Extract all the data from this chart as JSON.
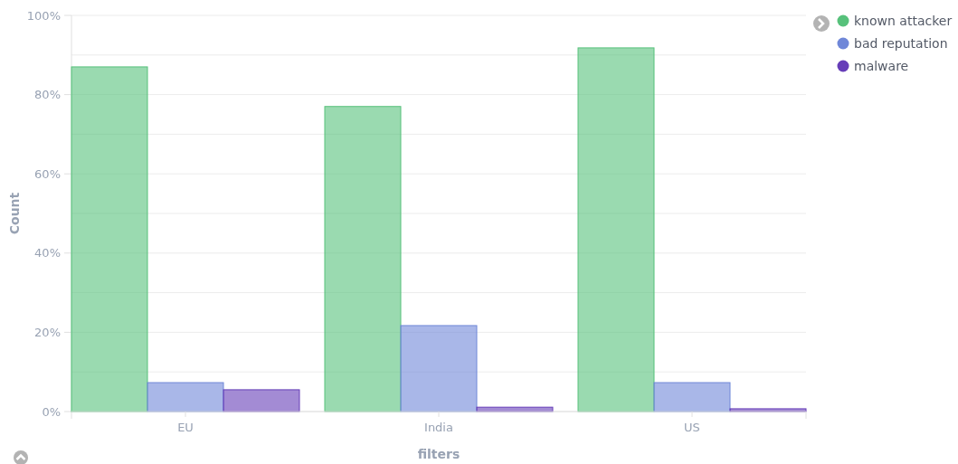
{
  "chart_data": {
    "type": "bar",
    "xlabel": "filters",
    "ylabel": "Count",
    "categories": [
      "EU",
      "India",
      "US"
    ],
    "series": [
      {
        "name": "known attacker",
        "color": "#57c17b",
        "values": [
          87,
          77,
          91.8
        ]
      },
      {
        "name": "bad reputation",
        "color": "#6f87d8",
        "values": [
          7.3,
          21.7,
          7.3
        ]
      },
      {
        "name": "malware",
        "color": "#663db8",
        "values": [
          5.5,
          1.1,
          0.7
        ]
      }
    ],
    "ylim": [
      0,
      100
    ],
    "yticks": [
      {
        "value": 0,
        "label": "0%"
      },
      {
        "value": 10,
        "label": null
      },
      {
        "value": 20,
        "label": "20%"
      },
      {
        "value": 30,
        "label": null
      },
      {
        "value": 40,
        "label": "40%"
      },
      {
        "value": 50,
        "label": null
      },
      {
        "value": 60,
        "label": "60%"
      },
      {
        "value": 70,
        "label": null
      },
      {
        "value": 80,
        "label": "80%"
      },
      {
        "value": 90,
        "label": null
      },
      {
        "value": 100,
        "label": "100%"
      }
    ],
    "grid": "y",
    "legend": "right"
  }
}
